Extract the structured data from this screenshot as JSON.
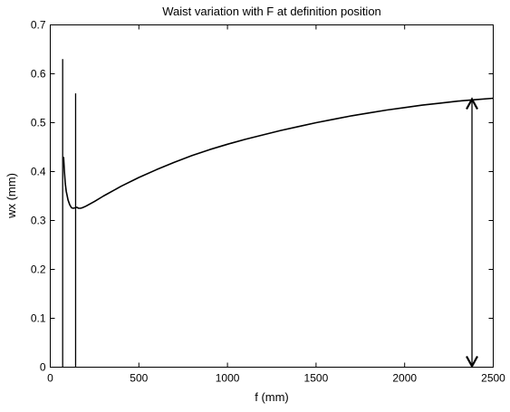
{
  "chart_data": {
    "type": "line",
    "title": "Waist variation with F at definition position",
    "xlabel": "f (mm)",
    "ylabel": "wx (mm)",
    "xlim": [
      0,
      2500
    ],
    "ylim": [
      0,
      0.7
    ],
    "xticks": [
      "0",
      "500",
      "1000",
      "1500",
      "2000",
      "2500"
    ],
    "yticks": [
      "0",
      "0.1",
      "0.2",
      "0.3",
      "0.4",
      "0.5",
      "0.6",
      "0.7"
    ],
    "grid": false,
    "series": [
      {
        "color": "#000000",
        "x": [
          75,
          80,
          85,
          90,
          100,
          110,
          120,
          130,
          140,
          150,
          160,
          170,
          180,
          200,
          250,
          300,
          400,
          500,
          600,
          700,
          800,
          900,
          1000,
          1100,
          1200,
          1300,
          1400,
          1500,
          1600,
          1700,
          1800,
          1900,
          2000,
          2100,
          2200,
          2300,
          2400,
          2500
        ],
        "y": [
          0.43,
          0.4,
          0.375,
          0.36,
          0.342,
          0.332,
          0.326,
          0.325,
          0.326,
          0.327,
          0.325,
          0.325,
          0.326,
          0.329,
          0.339,
          0.35,
          0.37,
          0.388,
          0.404,
          0.419,
          0.433,
          0.445,
          0.456,
          0.466,
          0.475,
          0.484,
          0.492,
          0.5,
          0.507,
          0.514,
          0.52,
          0.526,
          0.531,
          0.536,
          0.54,
          0.544,
          0.547,
          0.55
        ]
      }
    ],
    "spikes": [
      {
        "x": 70,
        "y_min": 0.0,
        "y_max": 0.63
      },
      {
        "x": 143,
        "y_min": 0.0,
        "y_max": 0.56
      }
    ],
    "annotation": {
      "type": "double-arrow",
      "x": 2380,
      "y_from": 0.0,
      "y_to": 0.55
    }
  }
}
